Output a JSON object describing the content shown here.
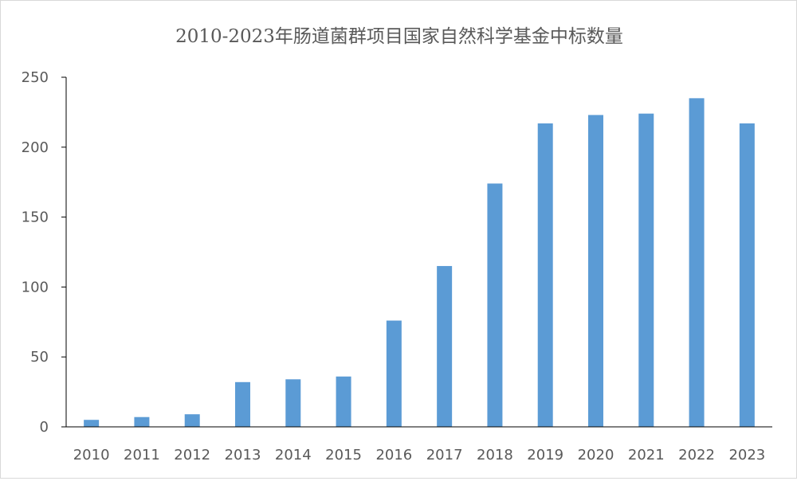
{
  "chart_data": {
    "type": "bar",
    "title": "2010-2023年肠道菌群项目国家自然科学基金中标数量",
    "xlabel": "",
    "ylabel": "",
    "categories": [
      "2010",
      "2011",
      "2012",
      "2013",
      "2014",
      "2015",
      "2016",
      "2017",
      "2018",
      "2019",
      "2020",
      "2021",
      "2022",
      "2023"
    ],
    "values": [
      5,
      7,
      9,
      32,
      34,
      36,
      76,
      115,
      174,
      217,
      223,
      224,
      235,
      217
    ],
    "ylim": [
      0,
      250
    ],
    "yticks": [
      0,
      50,
      100,
      150,
      200,
      250
    ],
    "grid": false,
    "legend": "none",
    "bar_color": "#5b9bd5",
    "axis_color": "#000000",
    "text_color": "#595959"
  }
}
